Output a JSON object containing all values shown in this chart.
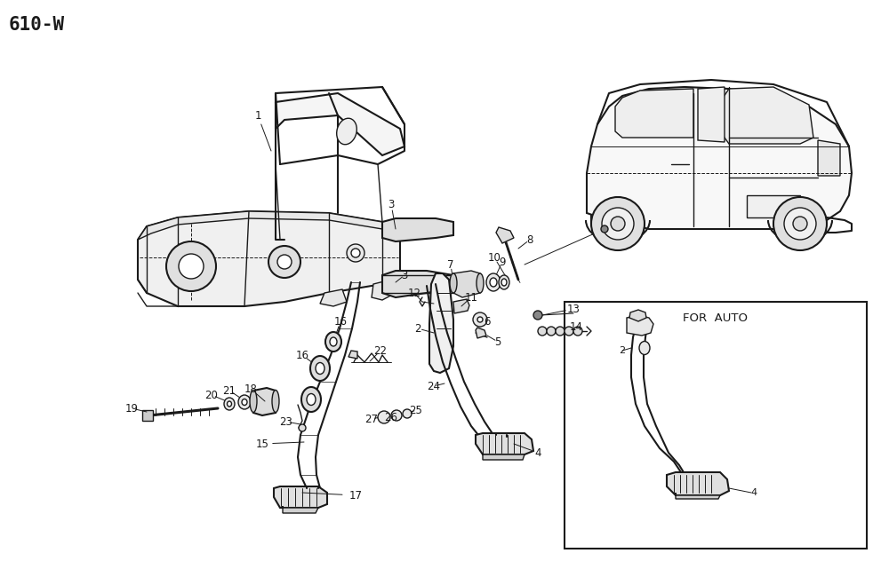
{
  "page_id": "610-W",
  "background_color": "#ffffff",
  "line_color": "#1a1a1a",
  "fig_width": 9.91,
  "fig_height": 6.41,
  "dpi": 100,
  "title_font": "monospace",
  "title_fontsize": 15,
  "label_fontsize": 8.5
}
